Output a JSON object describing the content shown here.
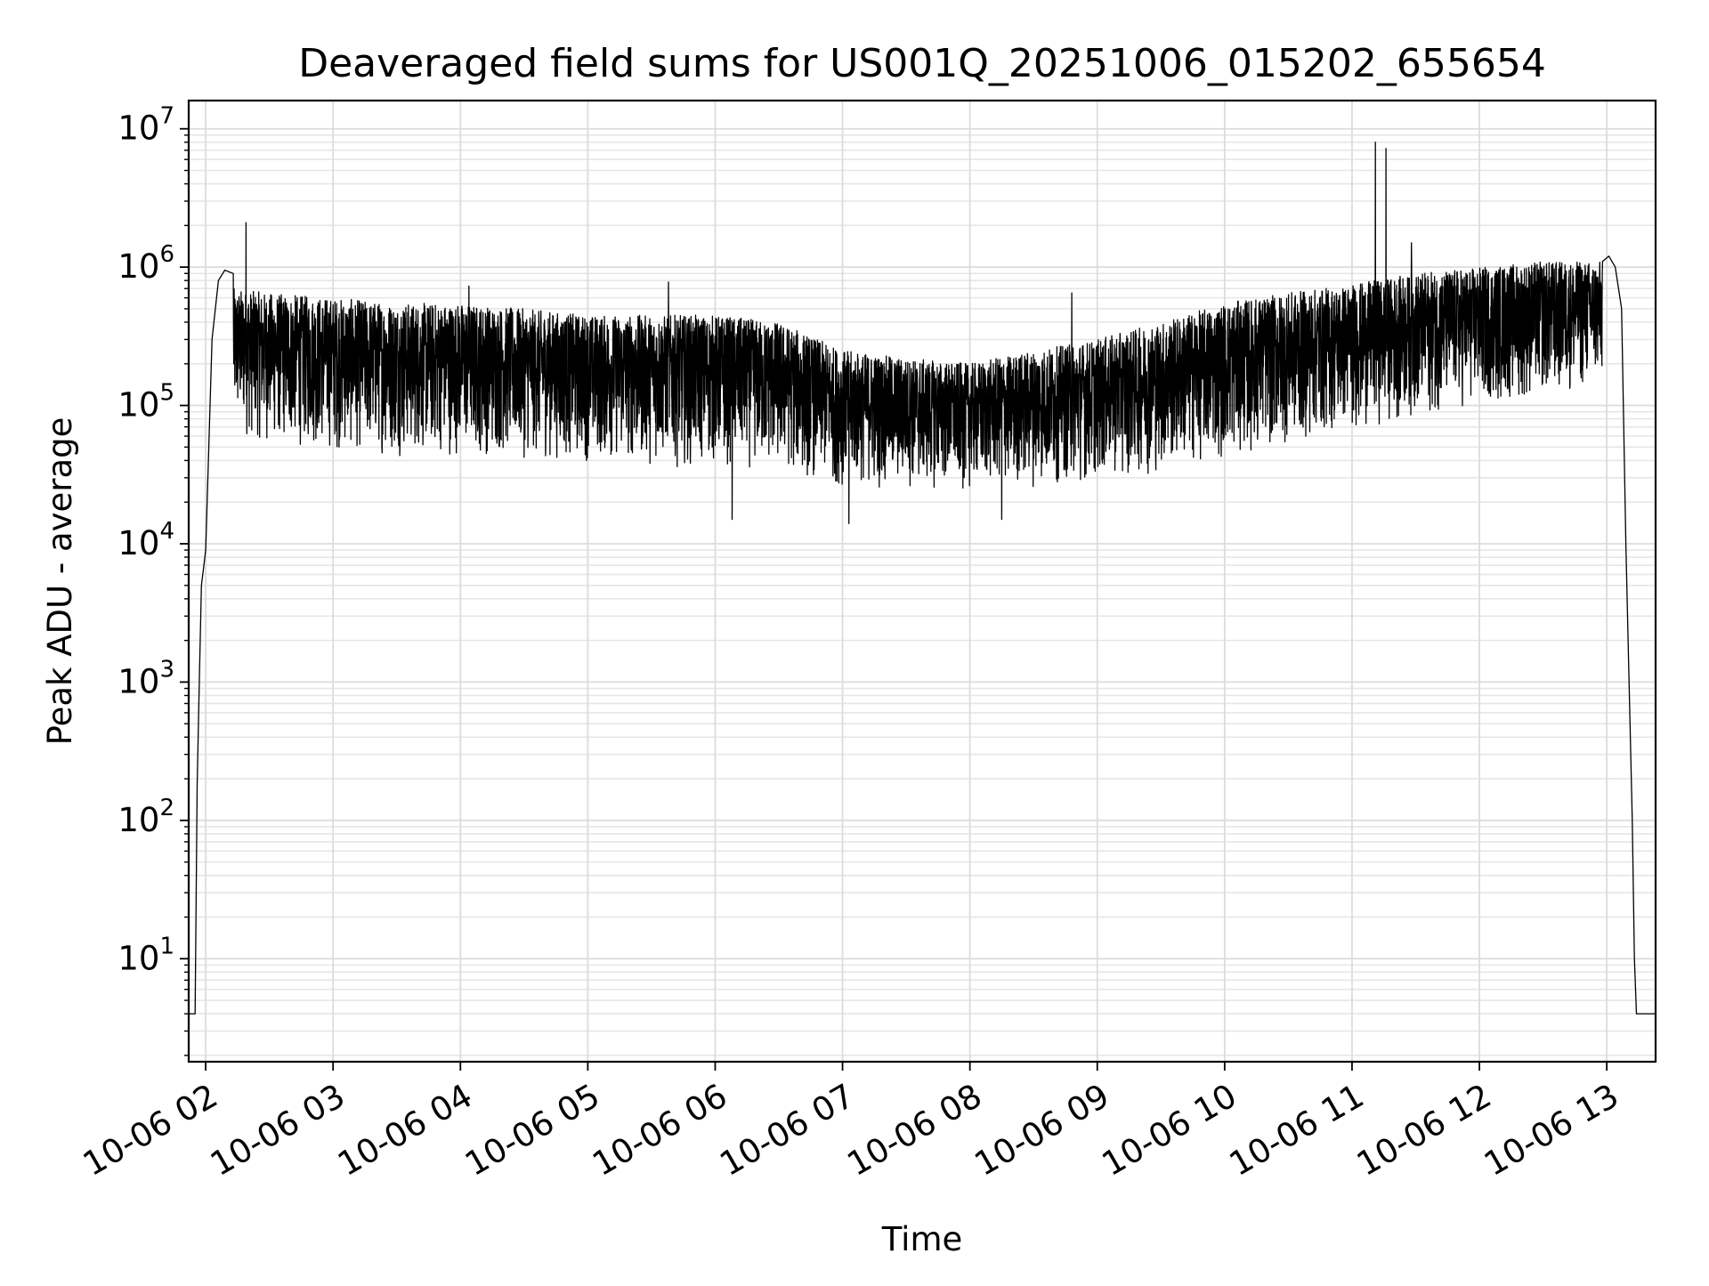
{
  "chart_data": {
    "type": "line",
    "title": "Deaveraged field sums for US001Q_20251006_015202_655654",
    "xlabel": "Time",
    "ylabel": "Peak ADU - average",
    "x_scale": "time",
    "y_scale": "log",
    "grid": true,
    "legend": "none",
    "xlim": [
      "2025-10-06 01:52",
      "2025-10-06 13:23"
    ],
    "ylim": [
      1.8,
      16000000
    ],
    "x_ticks": [
      {
        "value": "2025-10-06 02:00",
        "label": "10-06 02"
      },
      {
        "value": "2025-10-06 03:00",
        "label": "10-06 03"
      },
      {
        "value": "2025-10-06 04:00",
        "label": "10-06 04"
      },
      {
        "value": "2025-10-06 05:00",
        "label": "10-06 05"
      },
      {
        "value": "2025-10-06 06:00",
        "label": "10-06 06"
      },
      {
        "value": "2025-10-06 07:00",
        "label": "10-06 07"
      },
      {
        "value": "2025-10-06 08:00",
        "label": "10-06 08"
      },
      {
        "value": "2025-10-06 09:00",
        "label": "10-06 09"
      },
      {
        "value": "2025-10-06 10:00",
        "label": "10-06 10"
      },
      {
        "value": "2025-10-06 11:00",
        "label": "10-06 11"
      },
      {
        "value": "2025-10-06 12:00",
        "label": "10-06 12"
      },
      {
        "value": "2025-10-06 13:00",
        "label": "10-06 13"
      }
    ],
    "y_ticks": [
      {
        "value": 10,
        "base": "10",
        "exp": "1"
      },
      {
        "value": 100,
        "base": "10",
        "exp": "2"
      },
      {
        "value": 1000,
        "base": "10",
        "exp": "3"
      },
      {
        "value": 10000,
        "base": "10",
        "exp": "4"
      },
      {
        "value": 100000,
        "base": "10",
        "exp": "5"
      },
      {
        "value": 1000000,
        "base": "10",
        "exp": "6"
      },
      {
        "value": 10000000,
        "base": "10",
        "exp": "7"
      }
    ],
    "series": [
      {
        "color": "#000000",
        "noise": "Signal fluctuates rapidly between the listed upper and lower envelopes across the observing window",
        "envelope_upper": [
          [
            "2025-10-06 02:13",
            700000
          ],
          [
            "2025-10-06 02:30",
            650000
          ],
          [
            "2025-10-06 03:00",
            600000
          ],
          [
            "2025-10-06 03:30",
            550000
          ],
          [
            "2025-10-06 04:00",
            550000
          ],
          [
            "2025-10-06 04:30",
            500000
          ],
          [
            "2025-10-06 05:00",
            450000
          ],
          [
            "2025-10-06 05:30",
            450000
          ],
          [
            "2025-10-06 06:00",
            450000
          ],
          [
            "2025-10-06 06:30",
            400000
          ],
          [
            "2025-10-06 07:00",
            250000
          ],
          [
            "2025-10-06 07:30",
            220000
          ],
          [
            "2025-10-06 08:00",
            200000
          ],
          [
            "2025-10-06 08:30",
            250000
          ],
          [
            "2025-10-06 09:00",
            300000
          ],
          [
            "2025-10-06 09:30",
            400000
          ],
          [
            "2025-10-06 10:00",
            550000
          ],
          [
            "2025-10-06 10:30",
            650000
          ],
          [
            "2025-10-06 11:00",
            750000
          ],
          [
            "2025-10-06 11:30",
            900000
          ],
          [
            "2025-10-06 12:00",
            1000000
          ],
          [
            "2025-10-06 12:30",
            1100000
          ],
          [
            "2025-10-06 12:58",
            1100000
          ]
        ],
        "envelope_lower": [
          [
            "2025-10-06 02:13",
            60000
          ],
          [
            "2025-10-06 02:30",
            50000
          ],
          [
            "2025-10-06 03:00",
            45000
          ],
          [
            "2025-10-06 03:30",
            42000
          ],
          [
            "2025-10-06 04:00",
            42000
          ],
          [
            "2025-10-06 04:30",
            40000
          ],
          [
            "2025-10-06 05:00",
            38000
          ],
          [
            "2025-10-06 05:30",
            36000
          ],
          [
            "2025-10-06 06:00",
            35000
          ],
          [
            "2025-10-06 06:30",
            32000
          ],
          [
            "2025-10-06 07:00",
            25000
          ],
          [
            "2025-10-06 07:30",
            24000
          ],
          [
            "2025-10-06 08:00",
            24000
          ],
          [
            "2025-10-06 08:30",
            25000
          ],
          [
            "2025-10-06 09:00",
            28000
          ],
          [
            "2025-10-06 09:30",
            32000
          ],
          [
            "2025-10-06 10:00",
            40000
          ],
          [
            "2025-10-06 10:30",
            50000
          ],
          [
            "2025-10-06 11:00",
            65000
          ],
          [
            "2025-10-06 11:30",
            80000
          ],
          [
            "2025-10-06 12:00",
            95000
          ],
          [
            "2025-10-06 12:30",
            110000
          ],
          [
            "2025-10-06 12:58",
            130000
          ]
        ],
        "ramp_start": [
          [
            "2025-10-06 01:52",
            4
          ],
          [
            "2025-10-06 01:55",
            4
          ],
          [
            "2025-10-06 01:56",
            180
          ],
          [
            "2025-10-06 01:57",
            1000
          ],
          [
            "2025-10-06 01:58",
            5000
          ],
          [
            "2025-10-06 02:00",
            9000
          ],
          [
            "2025-10-06 02:03",
            300000
          ],
          [
            "2025-10-06 02:06",
            800000
          ],
          [
            "2025-10-06 02:09",
            950000
          ],
          [
            "2025-10-06 02:13",
            900000
          ]
        ],
        "ramp_end": [
          [
            "2025-10-06 12:58",
            1100000
          ],
          [
            "2025-10-06 13:01",
            1200000
          ],
          [
            "2025-10-06 13:04",
            1000000
          ],
          [
            "2025-10-06 13:07",
            500000
          ],
          [
            "2025-10-06 13:09",
            10000
          ],
          [
            "2025-10-06 13:12",
            100
          ],
          [
            "2025-10-06 13:13",
            10
          ],
          [
            "2025-10-06 13:14",
            4
          ],
          [
            "2025-10-06 13:23",
            4
          ]
        ],
        "spikes": [
          [
            "2025-10-06 02:19",
            2100000
          ],
          [
            "2025-10-06 04:04",
            730000
          ],
          [
            "2025-10-06 05:38",
            780000
          ],
          [
            "2025-10-06 06:08",
            15000
          ],
          [
            "2025-10-06 07:03",
            14000
          ],
          [
            "2025-10-06 08:15",
            15000
          ],
          [
            "2025-10-06 08:48",
            650000
          ],
          [
            "2025-10-06 11:11",
            8000000
          ],
          [
            "2025-10-06 11:16",
            7200000
          ],
          [
            "2025-10-06 11:28",
            1500000
          ],
          [
            "2025-10-06 12:59",
            1500000
          ]
        ]
      }
    ]
  }
}
